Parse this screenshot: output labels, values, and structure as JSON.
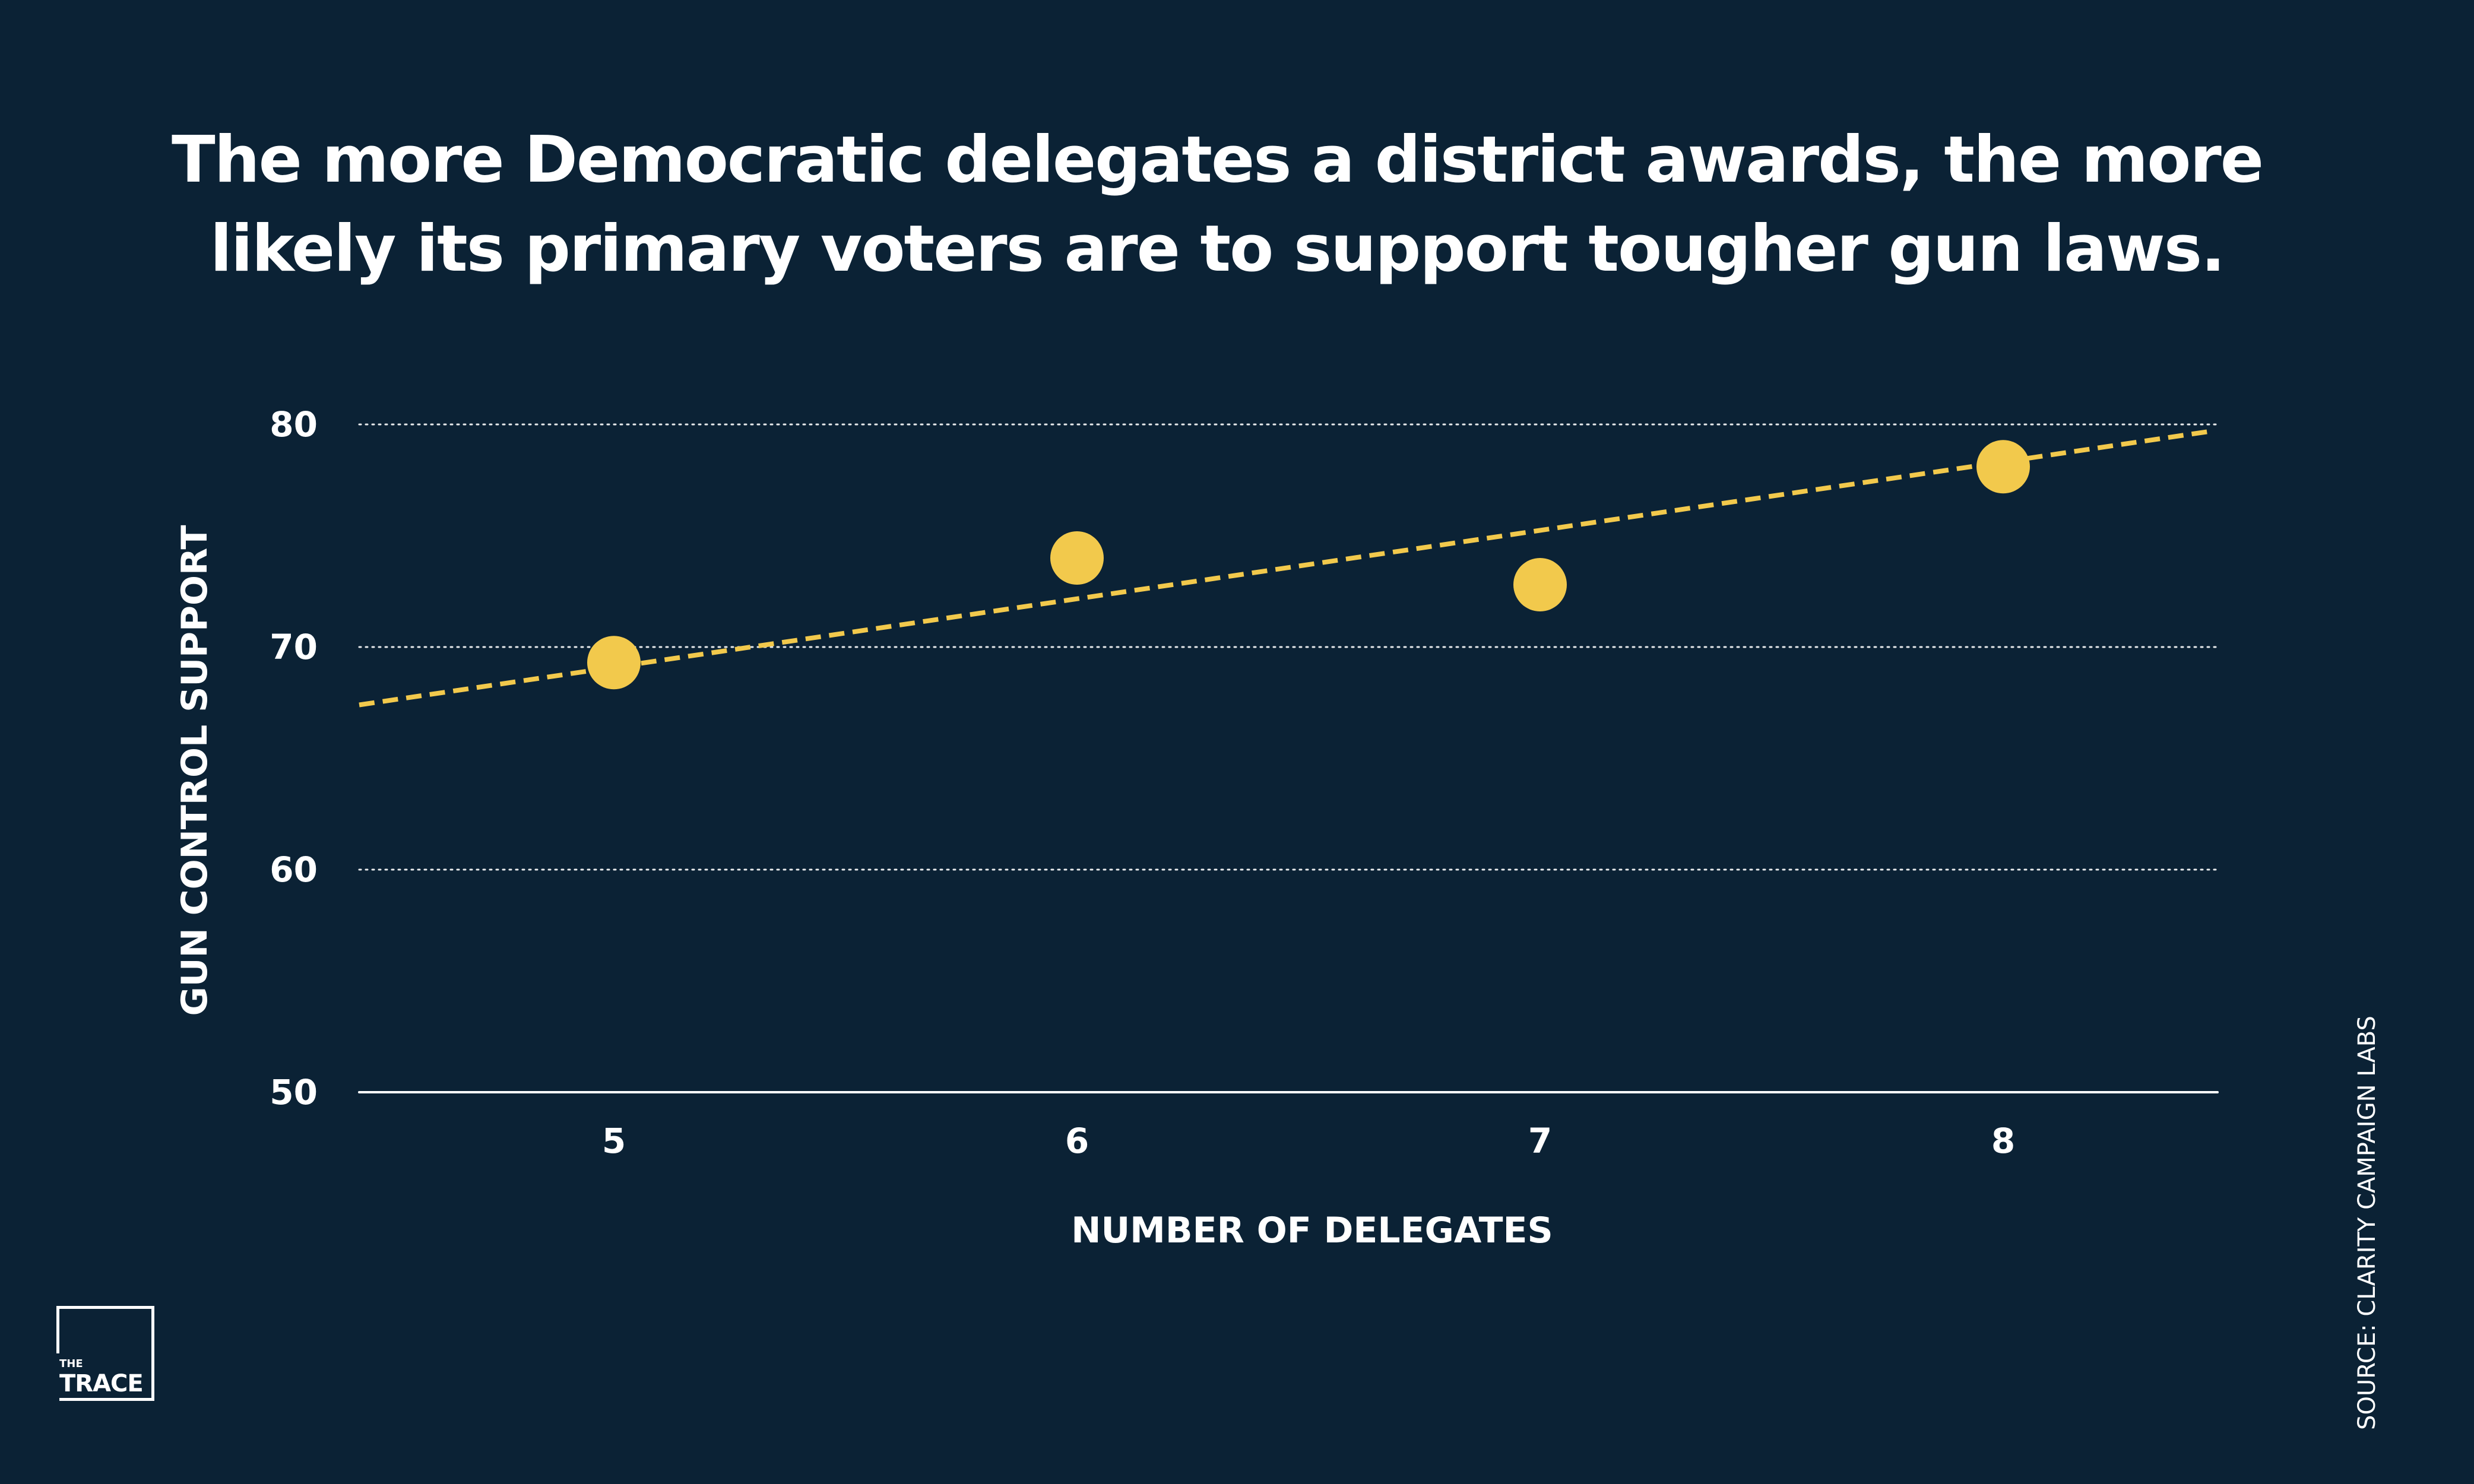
{
  "title_lines": [
    "The more Democratic delegates a district awards, the more",
    "likely its primary voters are to support tougher gun laws."
  ],
  "source": "SOURCE: CLARITY CAMPAIGN LABS",
  "logo": {
    "small": "THE",
    "big": "TRACE"
  },
  "colors": {
    "background": "#0b2235",
    "accent": "#f2c94c",
    "text": "#ffffff"
  },
  "chart_data": {
    "type": "scatter",
    "title": "The more Democratic delegates a district awards, the more likely its primary voters are to support tougher gun laws.",
    "xlabel": "NUMBER OF DELEGATES",
    "ylabel": "GUN CONTROL SUPPORT",
    "x_ticks": [
      "5",
      "6",
      "7",
      "8"
    ],
    "y_ticks": [
      "80",
      "70",
      "60",
      "50"
    ],
    "xlim": [
      4.45,
      8.45
    ],
    "ylim": [
      50,
      80
    ],
    "grid": true,
    "points": [
      {
        "x": 5,
        "y": 69.3
      },
      {
        "x": 6,
        "y": 74.0
      },
      {
        "x": 7,
        "y": 72.8
      },
      {
        "x": 8,
        "y": 78.1
      }
    ],
    "trendline": {
      "start": {
        "x": 4.45,
        "y": 67.4
      },
      "end": {
        "x": 8.45,
        "y": 79.7
      }
    }
  }
}
